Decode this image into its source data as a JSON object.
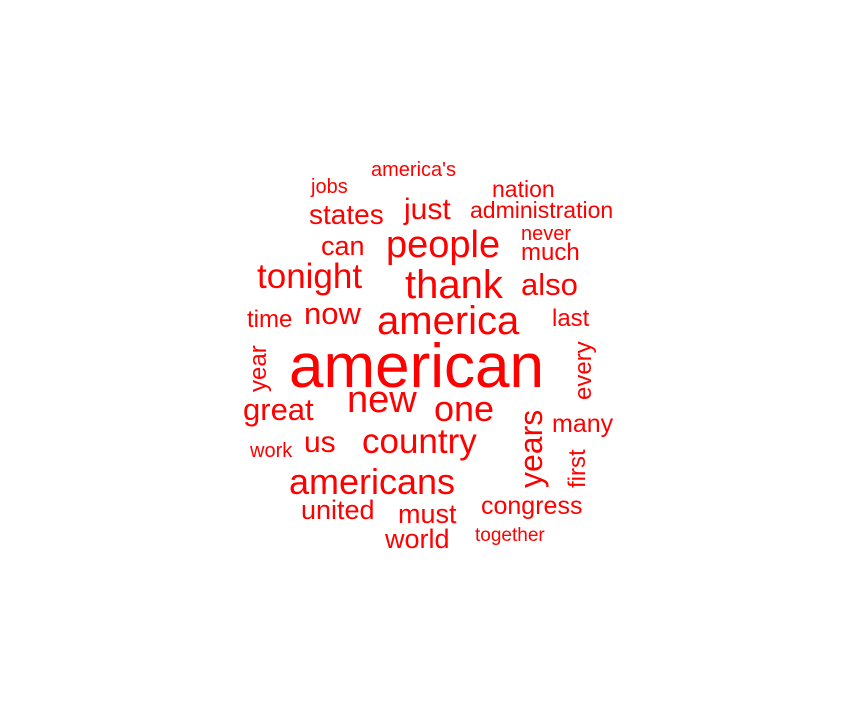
{
  "color": "#ff0000",
  "words": [
    {
      "text": "american"
    },
    {
      "text": "america"
    },
    {
      "text": "thank"
    },
    {
      "text": "people"
    },
    {
      "text": "tonight"
    },
    {
      "text": "new"
    },
    {
      "text": "one"
    },
    {
      "text": "country"
    },
    {
      "text": "americans"
    },
    {
      "text": "years"
    },
    {
      "text": "also"
    },
    {
      "text": "now"
    },
    {
      "text": "great"
    },
    {
      "text": "just"
    },
    {
      "text": "states"
    },
    {
      "text": "can"
    },
    {
      "text": "us"
    },
    {
      "text": "united"
    },
    {
      "text": "must"
    },
    {
      "text": "world"
    },
    {
      "text": "congress"
    },
    {
      "text": "many"
    },
    {
      "text": "last"
    },
    {
      "text": "time"
    },
    {
      "text": "year"
    },
    {
      "text": "every"
    },
    {
      "text": "first"
    },
    {
      "text": "much"
    },
    {
      "text": "administration"
    },
    {
      "text": "nation"
    },
    {
      "text": "never"
    },
    {
      "text": "america's"
    },
    {
      "text": "jobs"
    },
    {
      "text": "work"
    },
    {
      "text": "together"
    }
  ]
}
